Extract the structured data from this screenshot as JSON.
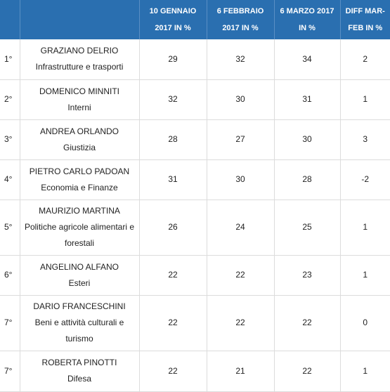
{
  "headers": {
    "rank": "",
    "name": "",
    "jan": "10 GENNAIO 2017 IN %",
    "feb": "6 FEBBRAIO 2017 IN %",
    "mar": "6 MARZO 2017 IN %",
    "diff": "DIFF MAR-FEB IN %"
  },
  "rows": [
    {
      "rank": "1°",
      "name": "GRAZIANO DELRIO",
      "ministry": "Infrastrutture e trasporti",
      "jan": "29",
      "feb": "32",
      "mar": "34",
      "diff": "2"
    },
    {
      "rank": "2°",
      "name": "DOMENICO MINNITI",
      "ministry": "Interni",
      "jan": "32",
      "feb": "30",
      "mar": "31",
      "diff": "1"
    },
    {
      "rank": "3°",
      "name": "ANDREA ORLANDO",
      "ministry": "Giustizia",
      "jan": "28",
      "feb": "27",
      "mar": "30",
      "diff": "3"
    },
    {
      "rank": "4°",
      "name": "PIETRO CARLO PADOAN",
      "ministry": "Economia e Finanze",
      "jan": "31",
      "feb": "30",
      "mar": "28",
      "diff": "-2"
    },
    {
      "rank": "5°",
      "name": "MAURIZIO MARTINA",
      "ministry": "Politiche agricole alimentari e forestali",
      "jan": "26",
      "feb": "24",
      "mar": "25",
      "diff": "1"
    },
    {
      "rank": "6°",
      "name": "ANGELINO ALFANO",
      "ministry": "Esteri",
      "jan": "22",
      "feb": "22",
      "mar": "23",
      "diff": "1"
    },
    {
      "rank": "7°",
      "name": "DARIO FRANCESCHINI",
      "ministry": "Beni e attività culturali e turismo",
      "jan": "22",
      "feb": "22",
      "mar": "22",
      "diff": "0"
    },
    {
      "rank": "7°",
      "name": "ROBERTA PINOTTI",
      "ministry": "Difesa",
      "jan": "22",
      "feb": "21",
      "mar": "22",
      "diff": "1"
    }
  ],
  "colors": {
    "header_bg": "#2a6fb0",
    "header_text": "#ffffff",
    "grid": "#dcdcdc"
  }
}
